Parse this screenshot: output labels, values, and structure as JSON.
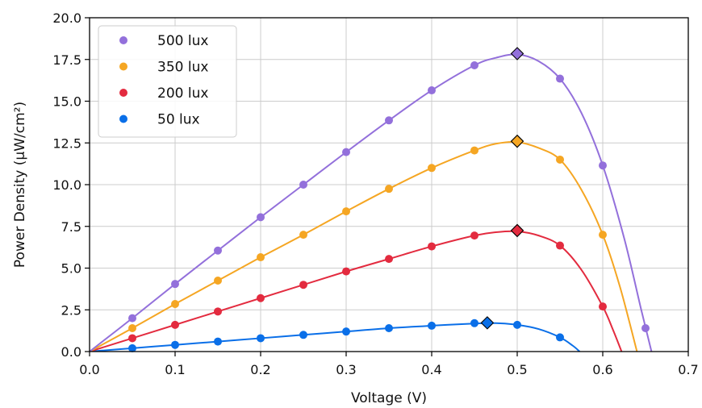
{
  "chart_data": {
    "type": "line",
    "xlabel": "Voltage (V)",
    "ylabel": "Power Density (μW/cm²)",
    "xlim": [
      0.0,
      0.7
    ],
    "ylim": [
      0.0,
      20.0
    ],
    "xticks": [
      "0.0",
      "0.1",
      "0.2",
      "0.3",
      "0.4",
      "0.5",
      "0.6",
      "0.7"
    ],
    "yticks": [
      "0.0",
      "2.5",
      "5.0",
      "7.5",
      "10.0",
      "12.5",
      "15.0",
      "17.5",
      "20.0"
    ],
    "grid": true,
    "legend_position": "top-left",
    "series": [
      {
        "name": "500 lux",
        "color": "#9370db",
        "points": [
          [
            0.05,
            2.0
          ],
          [
            0.1,
            4.05
          ],
          [
            0.15,
            6.05
          ],
          [
            0.2,
            8.05
          ],
          [
            0.25,
            10.0
          ],
          [
            0.3,
            11.95
          ],
          [
            0.35,
            13.85
          ],
          [
            0.4,
            15.65
          ],
          [
            0.45,
            17.15
          ],
          [
            0.5,
            17.8
          ],
          [
            0.55,
            16.35
          ],
          [
            0.6,
            11.15
          ],
          [
            0.65,
            1.4
          ]
        ],
        "curve": [
          [
            0.0,
            0.0
          ],
          [
            0.05,
            2.0
          ],
          [
            0.1,
            4.05
          ],
          [
            0.15,
            6.05
          ],
          [
            0.2,
            8.05
          ],
          [
            0.25,
            10.0
          ],
          [
            0.3,
            11.95
          ],
          [
            0.35,
            13.85
          ],
          [
            0.4,
            15.65
          ],
          [
            0.45,
            17.15
          ],
          [
            0.475,
            17.6
          ],
          [
            0.5,
            17.8
          ],
          [
            0.525,
            17.4
          ],
          [
            0.55,
            16.35
          ],
          [
            0.575,
            14.3
          ],
          [
            0.6,
            11.15
          ],
          [
            0.625,
            6.8
          ],
          [
            0.645,
            2.5
          ],
          [
            0.657,
            0.0
          ]
        ],
        "mpp": [
          0.5,
          17.85
        ]
      },
      {
        "name": "350 lux",
        "color": "#f5a623",
        "points": [
          [
            0.05,
            1.4
          ],
          [
            0.1,
            2.85
          ],
          [
            0.15,
            4.25
          ],
          [
            0.2,
            5.65
          ],
          [
            0.25,
            7.0
          ],
          [
            0.3,
            8.4
          ],
          [
            0.35,
            9.75
          ],
          [
            0.4,
            11.0
          ],
          [
            0.45,
            12.05
          ],
          [
            0.5,
            12.55
          ],
          [
            0.55,
            11.5
          ],
          [
            0.6,
            7.0
          ]
        ],
        "curve": [
          [
            0.0,
            0.0
          ],
          [
            0.05,
            1.4
          ],
          [
            0.1,
            2.85
          ],
          [
            0.15,
            4.25
          ],
          [
            0.2,
            5.65
          ],
          [
            0.25,
            7.0
          ],
          [
            0.3,
            8.4
          ],
          [
            0.35,
            9.75
          ],
          [
            0.4,
            11.0
          ],
          [
            0.45,
            12.05
          ],
          [
            0.475,
            12.45
          ],
          [
            0.5,
            12.55
          ],
          [
            0.525,
            12.2
          ],
          [
            0.55,
            11.5
          ],
          [
            0.575,
            9.7
          ],
          [
            0.6,
            7.0
          ],
          [
            0.62,
            3.9
          ],
          [
            0.64,
            0.0
          ]
        ],
        "mpp": [
          0.5,
          12.6
        ]
      },
      {
        "name": "200 lux",
        "color": "#e32b3f",
        "points": [
          [
            0.05,
            0.8
          ],
          [
            0.1,
            1.6
          ],
          [
            0.15,
            2.4
          ],
          [
            0.2,
            3.2
          ],
          [
            0.25,
            4.0
          ],
          [
            0.3,
            4.8
          ],
          [
            0.35,
            5.55
          ],
          [
            0.4,
            6.3
          ],
          [
            0.45,
            6.95
          ],
          [
            0.5,
            7.2
          ],
          [
            0.55,
            6.35
          ],
          [
            0.6,
            2.7
          ]
        ],
        "curve": [
          [
            0.0,
            0.0
          ],
          [
            0.05,
            0.8
          ],
          [
            0.1,
            1.6
          ],
          [
            0.15,
            2.4
          ],
          [
            0.2,
            3.2
          ],
          [
            0.25,
            4.0
          ],
          [
            0.3,
            4.8
          ],
          [
            0.35,
            5.55
          ],
          [
            0.4,
            6.3
          ],
          [
            0.45,
            6.95
          ],
          [
            0.475,
            7.15
          ],
          [
            0.5,
            7.2
          ],
          [
            0.525,
            6.95
          ],
          [
            0.55,
            6.35
          ],
          [
            0.575,
            4.9
          ],
          [
            0.6,
            2.7
          ],
          [
            0.612,
            1.3
          ],
          [
            0.622,
            0.0
          ]
        ],
        "mpp": [
          0.5,
          7.25
        ]
      },
      {
        "name": "50 lux",
        "color": "#0a6fe8",
        "points": [
          [
            0.05,
            0.2
          ],
          [
            0.1,
            0.4
          ],
          [
            0.15,
            0.6
          ],
          [
            0.2,
            0.8
          ],
          [
            0.25,
            1.0
          ],
          [
            0.3,
            1.2
          ],
          [
            0.35,
            1.4
          ],
          [
            0.4,
            1.55
          ],
          [
            0.45,
            1.7
          ],
          [
            0.5,
            1.6
          ],
          [
            0.55,
            0.85
          ]
        ],
        "curve": [
          [
            0.0,
            0.0
          ],
          [
            0.05,
            0.2
          ],
          [
            0.1,
            0.4
          ],
          [
            0.15,
            0.6
          ],
          [
            0.2,
            0.8
          ],
          [
            0.25,
            1.0
          ],
          [
            0.3,
            1.2
          ],
          [
            0.35,
            1.4
          ],
          [
            0.4,
            1.55
          ],
          [
            0.45,
            1.68
          ],
          [
            0.475,
            1.7
          ],
          [
            0.5,
            1.6
          ],
          [
            0.525,
            1.35
          ],
          [
            0.55,
            0.85
          ],
          [
            0.565,
            0.35
          ],
          [
            0.573,
            0.0
          ]
        ],
        "mpp": [
          0.465,
          1.72
        ]
      }
    ]
  }
}
